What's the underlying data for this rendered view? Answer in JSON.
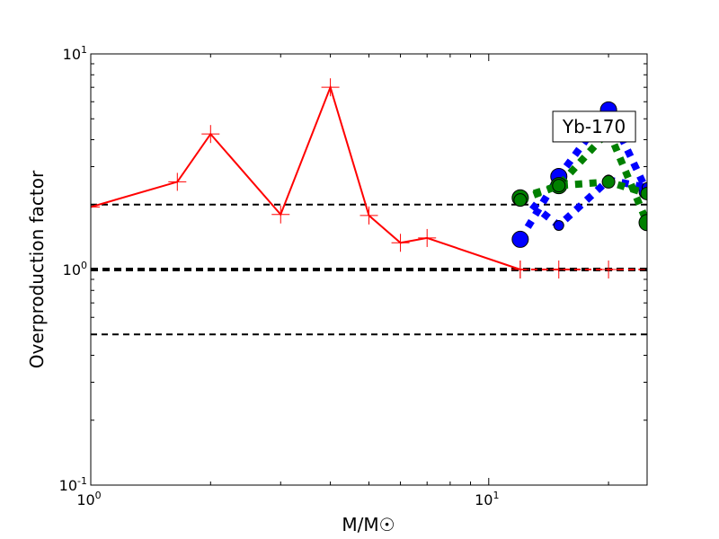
{
  "chart_data": {
    "type": "line",
    "title": "",
    "xlabel": "M/M☉",
    "ylabel": "Overproduction factor",
    "xscale": "log",
    "yscale": "log",
    "xlim": [
      1,
      25
    ],
    "ylim": [
      0.1,
      10
    ],
    "grid": false,
    "x_ticks": [
      {
        "value": 1,
        "mantissa": "10",
        "exp": "0"
      },
      {
        "value": 10,
        "mantissa": "10",
        "exp": "1"
      }
    ],
    "y_ticks": [
      {
        "value": 0.1,
        "mantissa": "10",
        "exp": "-1"
      },
      {
        "value": 1,
        "mantissa": "10",
        "exp": "0"
      },
      {
        "value": 10,
        "mantissa": "10",
        "exp": "1"
      }
    ],
    "reference_lines": [
      {
        "y": 2.0,
        "style": "dashed",
        "width": "thin",
        "color": "#000000"
      },
      {
        "y": 1.0,
        "style": "dashed",
        "width": "thick",
        "color": "#000000"
      },
      {
        "y": 0.5,
        "style": "dashed",
        "width": "thin",
        "color": "#000000"
      }
    ],
    "annotation": {
      "text": "Yb-170",
      "x": 20,
      "y": 4.6
    },
    "series": [
      {
        "color": "#ff0000",
        "line": "solid",
        "marker": "plus",
        "x": [
          1.0,
          1.65,
          2.0,
          3.0,
          4.0,
          5.0,
          6.0,
          7.0,
          12.0
        ],
        "y": [
          1.95,
          2.55,
          4.25,
          1.8,
          7.0,
          1.78,
          1.33,
          1.4,
          1.0
        ]
      },
      {
        "color": "#ff0000",
        "line": "dashed",
        "marker": "plus",
        "x": [
          12.0,
          15.0,
          20.0,
          25.0
        ],
        "y": [
          1.0,
          1.0,
          1.0,
          1.0
        ]
      },
      {
        "color": "#0000ff",
        "line": "dotted",
        "marker": "circle-large",
        "x": [
          12.0,
          15.0,
          20.0,
          25.0
        ],
        "y": [
          1.38,
          2.7,
          5.5,
          2.3
        ]
      },
      {
        "color": "#0000ff",
        "line": "dotted",
        "marker": "circle-small",
        "x": [
          12.0,
          15.0,
          20.0,
          25.0
        ],
        "y": [
          2.2,
          1.6,
          2.6,
          2.4
        ]
      },
      {
        "color": "#008000",
        "line": "dotted",
        "marker": "circle-large",
        "x": [
          12.0,
          15.0,
          20.0,
          25.0
        ],
        "y": [
          2.15,
          2.45,
          4.4,
          1.65
        ]
      },
      {
        "color": "#008000",
        "line": "dotted",
        "marker": "circle-medium",
        "x": [
          12.0,
          15.0,
          20.0,
          25.0
        ],
        "y": [
          2.1,
          2.45,
          2.55,
          2.25
        ]
      }
    ]
  }
}
